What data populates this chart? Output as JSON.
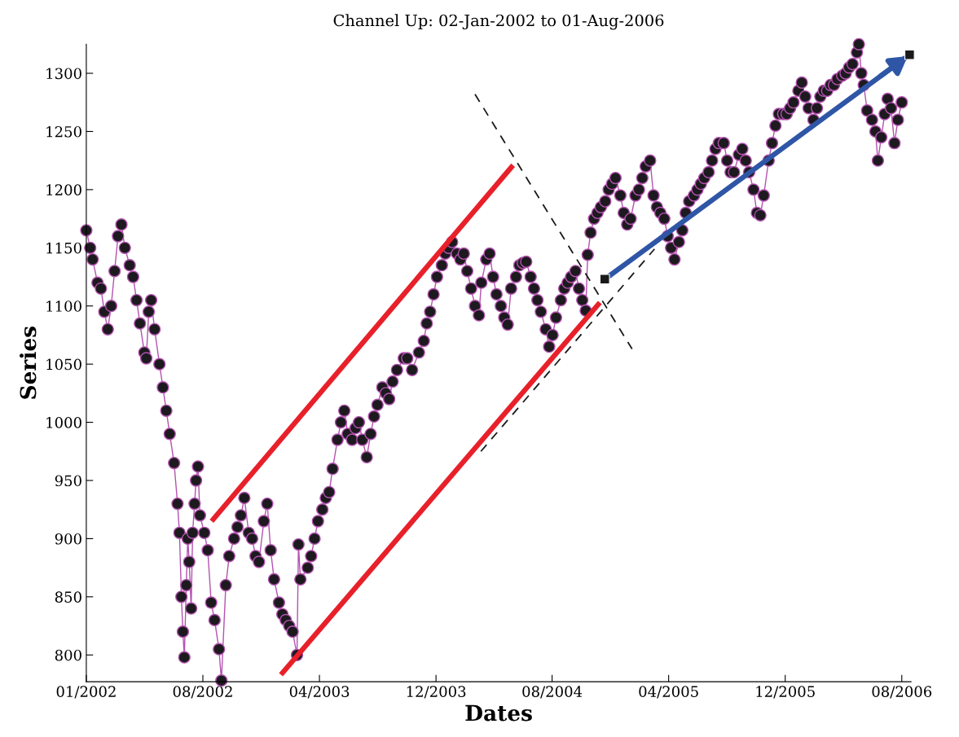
{
  "chart_data": {
    "type": "line",
    "title": "Channel Up: 02-Jan-2002 to 01-Aug-2006",
    "xlabel": "Dates",
    "ylabel": "Series",
    "xlim": [
      "2002-01-02",
      "2006-08-20"
    ],
    "xticks": [
      {
        "value": "2002-01-02",
        "label": "01/2002"
      },
      {
        "value": "2002-08-29",
        "label": "08/2002"
      },
      {
        "value": "2003-04-25",
        "label": "04/2003"
      },
      {
        "value": "2003-12-20",
        "label": "12/2003"
      },
      {
        "value": "2004-08-14",
        "label": "08/2004"
      },
      {
        "value": "2005-04-10",
        "label": "04/2005"
      },
      {
        "value": "2005-12-05",
        "label": "12/2005"
      },
      {
        "value": "2006-08-01",
        "label": "08/2006"
      }
    ],
    "ylim": [
      777,
      1325
    ],
    "yticks": [
      800,
      850,
      900,
      950,
      1000,
      1050,
      1100,
      1150,
      1200,
      1250,
      1300
    ],
    "grid": false,
    "legend": false,
    "series": [
      {
        "color": "#b452b0",
        "marker": "circle",
        "x": [
          "2002-01-02",
          "2002-01-10",
          "2002-01-15",
          "2002-01-25",
          "2002-02-01",
          "2002-02-08",
          "2002-02-15",
          "2002-02-22",
          "2002-03-01",
          "2002-03-08",
          "2002-03-15",
          "2002-03-22",
          "2002-04-01",
          "2002-04-08",
          "2002-04-15",
          "2002-04-22",
          "2002-05-01",
          "2002-05-05",
          "2002-05-10",
          "2002-05-15",
          "2002-05-22",
          "2002-06-01",
          "2002-06-08",
          "2002-06-15",
          "2002-06-22",
          "2002-07-01",
          "2002-07-08",
          "2002-07-12",
          "2002-07-16",
          "2002-07-19",
          "2002-07-22",
          "2002-07-26",
          "2002-07-29",
          "2002-08-01",
          "2002-08-05",
          "2002-08-08",
          "2002-08-12",
          "2002-08-15",
          "2002-08-19",
          "2002-08-23",
          "2002-09-01",
          "2002-09-08",
          "2002-09-15",
          "2002-09-22",
          "2002-10-01",
          "2002-10-06",
          "2002-10-15",
          "2002-10-22",
          "2002-11-01",
          "2002-11-08",
          "2002-11-15",
          "2002-11-22",
          "2002-12-01",
          "2002-12-08",
          "2002-12-15",
          "2002-12-22",
          "2003-01-01",
          "2003-01-08",
          "2003-01-15",
          "2003-01-22",
          "2003-02-01",
          "2003-02-08",
          "2003-02-15",
          "2003-02-22",
          "2003-03-01",
          "2003-03-10",
          "2003-03-13",
          "2003-03-17",
          "2003-04-01",
          "2003-04-08",
          "2003-04-15",
          "2003-04-22",
          "2003-05-01",
          "2003-05-08",
          "2003-05-15",
          "2003-05-22",
          "2003-06-01",
          "2003-06-08",
          "2003-06-15",
          "2003-06-22",
          "2003-07-01",
          "2003-07-08",
          "2003-07-15",
          "2003-07-22",
          "2003-07-31",
          "2003-08-08",
          "2003-08-15",
          "2003-08-22",
          "2003-09-01",
          "2003-09-08",
          "2003-09-15",
          "2003-09-22",
          "2003-10-01",
          "2003-10-15",
          "2003-10-22",
          "2003-11-01",
          "2003-11-15",
          "2003-11-25",
          "2003-12-01",
          "2003-12-08",
          "2003-12-15",
          "2003-12-22",
          "2004-01-01",
          "2004-01-08",
          "2004-01-15",
          "2004-01-22",
          "2004-02-01",
          "2004-02-08",
          "2004-02-15",
          "2004-02-22",
          "2004-03-01",
          "2004-03-09",
          "2004-03-17",
          "2004-03-22",
          "2004-04-01",
          "2004-04-08",
          "2004-04-15",
          "2004-04-22",
          "2004-05-01",
          "2004-05-08",
          "2004-05-15",
          "2004-05-22",
          "2004-06-01",
          "2004-06-08",
          "2004-06-15",
          "2004-06-22",
          "2004-07-01",
          "2004-07-08",
          "2004-07-15",
          "2004-07-22",
          "2004-08-01",
          "2004-08-08",
          "2004-08-15",
          "2004-08-22",
          "2004-09-01",
          "2004-09-08",
          "2004-09-15",
          "2004-09-22",
          "2004-10-01",
          "2004-10-08",
          "2004-10-15",
          "2004-10-22",
          "2004-10-26",
          "2004-11-01",
          "2004-11-08",
          "2004-11-15",
          "2004-11-22",
          "2004-12-01",
          "2004-12-08",
          "2004-12-15",
          "2004-12-22",
          "2005-01-01",
          "2005-01-08",
          "2005-01-15",
          "2005-01-22",
          "2005-02-01",
          "2005-02-08",
          "2005-02-15",
          "2005-02-22",
          "2005-03-03",
          "2005-03-10",
          "2005-03-17",
          "2005-03-24",
          "2005-04-01",
          "2005-04-08",
          "2005-04-15",
          "2005-04-22",
          "2005-05-01",
          "2005-05-08",
          "2005-05-15",
          "2005-05-22",
          "2005-06-01",
          "2005-06-08",
          "2005-06-15",
          "2005-06-22",
          "2005-07-01",
          "2005-07-08",
          "2005-07-15",
          "2005-07-22",
          "2005-08-01",
          "2005-08-08",
          "2005-08-15",
          "2005-08-22",
          "2005-09-01",
          "2005-09-08",
          "2005-09-15",
          "2005-09-22",
          "2005-10-01",
          "2005-10-08",
          "2005-10-15",
          "2005-10-22",
          "2005-11-01",
          "2005-11-08",
          "2005-11-15",
          "2005-11-22",
          "2005-12-01",
          "2005-12-08",
          "2005-12-15",
          "2005-12-22",
          "2006-01-01",
          "2006-01-08",
          "2006-01-15",
          "2006-01-22",
          "2006-02-01",
          "2006-02-08",
          "2006-02-15",
          "2006-02-22",
          "2006-03-01",
          "2006-03-08",
          "2006-03-15",
          "2006-03-22",
          "2006-04-01",
          "2006-04-08",
          "2006-04-15",
          "2006-04-22",
          "2006-05-01",
          "2006-05-05",
          "2006-05-10",
          "2006-05-15",
          "2006-05-22",
          "2006-06-01",
          "2006-06-08",
          "2006-06-13",
          "2006-06-20",
          "2006-06-27",
          "2006-07-03",
          "2006-07-10",
          "2006-07-17",
          "2006-07-24",
          "2006-08-01"
        ],
        "values": [
          1165,
          1150,
          1140,
          1120,
          1115,
          1095,
          1080,
          1100,
          1130,
          1160,
          1170,
          1150,
          1135,
          1125,
          1105,
          1085,
          1060,
          1055,
          1095,
          1105,
          1080,
          1050,
          1030,
          1010,
          990,
          965,
          930,
          905,
          850,
          820,
          798,
          860,
          900,
          880,
          840,
          905,
          930,
          950,
          962,
          920,
          905,
          890,
          845,
          830,
          805,
          778,
          860,
          885,
          900,
          910,
          920,
          935,
          905,
          900,
          885,
          880,
          915,
          930,
          890,
          865,
          845,
          835,
          830,
          825,
          820,
          800,
          895,
          865,
          875,
          885,
          900,
          915,
          925,
          935,
          940,
          960,
          985,
          1000,
          1010,
          990,
          985,
          995,
          1000,
          985,
          970,
          990,
          1005,
          1015,
          1030,
          1025,
          1020,
          1035,
          1045,
          1055,
          1055,
          1045,
          1060,
          1070,
          1085,
          1095,
          1110,
          1125,
          1135,
          1145,
          1150,
          1155,
          1145,
          1140,
          1145,
          1130,
          1115,
          1100,
          1092,
          1120,
          1140,
          1145,
          1125,
          1110,
          1100,
          1090,
          1084,
          1115,
          1125,
          1135,
          1137,
          1138,
          1125,
          1115,
          1105,
          1095,
          1080,
          1065,
          1075,
          1090,
          1105,
          1115,
          1120,
          1125,
          1130,
          1115,
          1105,
          1096,
          1144,
          1163,
          1175,
          1180,
          1185,
          1190,
          1200,
          1205,
          1210,
          1195,
          1180,
          1170,
          1175,
          1195,
          1200,
          1210,
          1220,
          1225,
          1195,
          1185,
          1180,
          1175,
          1160,
          1150,
          1140,
          1155,
          1165,
          1180,
          1190,
          1195,
          1200,
          1205,
          1210,
          1215,
          1225,
          1235,
          1240,
          1240,
          1225,
          1215,
          1215,
          1230,
          1235,
          1225,
          1215,
          1200,
          1180,
          1178,
          1195,
          1225,
          1240,
          1255,
          1265,
          1265,
          1265,
          1270,
          1275,
          1285,
          1292,
          1280,
          1270,
          1260,
          1270,
          1280,
          1285,
          1285,
          1290,
          1290,
          1295,
          1298,
          1300,
          1305,
          1308,
          1318,
          1325,
          1300,
          1290,
          1268,
          1260,
          1250,
          1225,
          1245,
          1265,
          1278,
          1270,
          1240,
          1260,
          1275
        ]
      },
      {
        "type": "line",
        "color": "#e8202a",
        "x": [
          "2002-09-16",
          "2004-05-26"
        ],
        "values": [
          915,
          1221
        ]
      },
      {
        "type": "line",
        "color": "#e8202a",
        "x": [
          "2003-02-05",
          "2004-11-20"
        ],
        "values": [
          783,
          1103
        ]
      },
      {
        "type": "line",
        "color": "#1a1a1a",
        "line_style": "dashed",
        "x": [
          "2004-03-09",
          "2005-01-25"
        ],
        "values": [
          1282,
          1063
        ]
      },
      {
        "type": "line",
        "color": "#1a1a1a",
        "line_style": "dashed",
        "x": [
          "2004-03-21",
          "2005-03-12"
        ],
        "values": [
          975,
          1149
        ]
      },
      {
        "type": "line",
        "color": "#2f56a6",
        "x": [
          "2004-11-30",
          "2006-08-17"
        ],
        "values": [
          1123,
          1316
        ]
      },
      {
        "type": "scatter",
        "color": "#1a1a1a",
        "marker": "square",
        "x": [
          "2004-11-30",
          "2006-08-17"
        ],
        "values": [
          1123,
          1316
        ]
      }
    ]
  }
}
